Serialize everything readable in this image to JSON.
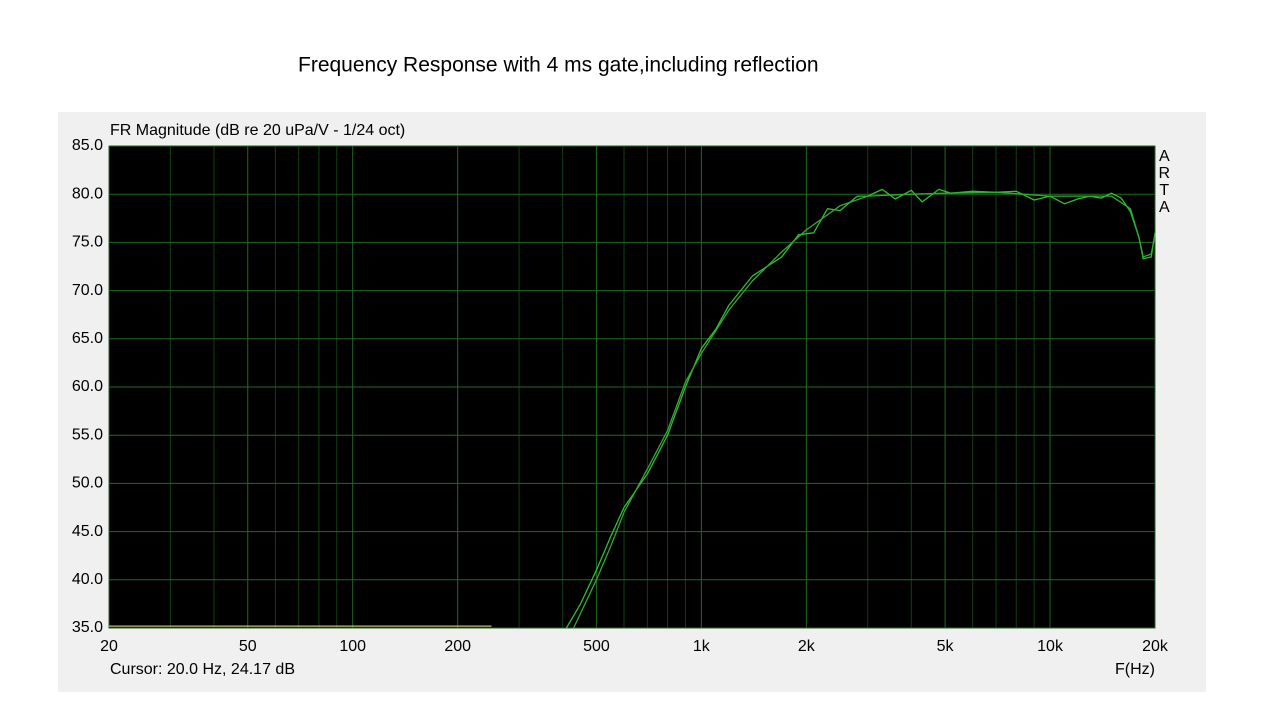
{
  "chart_data": {
    "type": "line",
    "title": "Frequency Response with 4 ms gate,including reflection",
    "plot_label": "FR Magnitude (dB re 20 uPa/V - 1/24 oct)",
    "watermark": "ARTA",
    "cursor_text": "Cursor: 20.0 Hz, 24.17 dB",
    "x_label": "F(Hz)",
    "x_scale": "log",
    "grid": true,
    "xlim": [
      20,
      20000
    ],
    "ylim": [
      35,
      85
    ],
    "xticks": [
      20,
      50,
      100,
      200,
      500,
      {
        "value": 1000,
        "label": "1k"
      },
      {
        "value": 2000,
        "label": "2k"
      },
      {
        "value": 5000,
        "label": "5k"
      },
      {
        "value": 10000,
        "label": "10k"
      },
      {
        "value": 20000,
        "label": "20k"
      }
    ],
    "yticks": [
      {
        "value": 35,
        "label": "35.0"
      },
      {
        "value": 40,
        "label": "40.0"
      },
      {
        "value": 45,
        "label": "45.0"
      },
      {
        "value": 50,
        "label": "50.0"
      },
      {
        "value": 55,
        "label": "55.0"
      },
      {
        "value": 60,
        "label": "60.0"
      },
      {
        "value": 65,
        "label": "65.0"
      },
      {
        "value": 70,
        "label": "70.0"
      },
      {
        "value": 75,
        "label": "75.0"
      },
      {
        "value": 80,
        "label": "80.0"
      },
      {
        "value": 85,
        "label": "85.0"
      }
    ],
    "series": [
      {
        "color": "#c8bc7c",
        "x": [
          20,
          250
        ],
        "values": [
          35.2,
          35.2
        ]
      },
      {
        "color": "#2fbf2f",
        "x": [
          410,
          450,
          500,
          550,
          600,
          700,
          800,
          900,
          1000,
          1100,
          1200,
          1400,
          1700,
          1900,
          2100,
          2300,
          2500,
          2800,
          3000,
          3300,
          3600,
          4000,
          4300,
          4800,
          5200,
          6000,
          7000,
          8000,
          9000,
          10000,
          11000,
          12000,
          13000,
          14000,
          15000,
          16000,
          17000,
          18000,
          18500,
          19500,
          20000
        ],
        "values": [
          35,
          37.5,
          41,
          44.5,
          47.5,
          51,
          55,
          60,
          64,
          66,
          68.5,
          71.5,
          73.5,
          75.8,
          76,
          78.5,
          78.3,
          79.8,
          79.8,
          80.5,
          79.5,
          80.4,
          79.2,
          80.5,
          80.1,
          80.3,
          80.2,
          80.3,
          79.4,
          79.8,
          79.0,
          79.5,
          79.8,
          79.6,
          80.1,
          79.6,
          78.2,
          75.5,
          73.3,
          73.5,
          76
        ]
      },
      {
        "color": "#33a833",
        "x": [
          430,
          500,
          550,
          600,
          700,
          800,
          900,
          1000,
          1200,
          1400,
          1700,
          2000,
          2500,
          3000,
          4000,
          5000,
          7000,
          10000,
          15000,
          17000,
          18000,
          18500,
          19500,
          20000
        ],
        "values": [
          35,
          40,
          43.5,
          47,
          51.5,
          55.5,
          60.5,
          63.5,
          68,
          71,
          74,
          76.3,
          78.8,
          79.8,
          80,
          80.1,
          80.2,
          79.8,
          79.8,
          78.5,
          75.5,
          73.5,
          73.8,
          75.8
        ]
      }
    ]
  }
}
